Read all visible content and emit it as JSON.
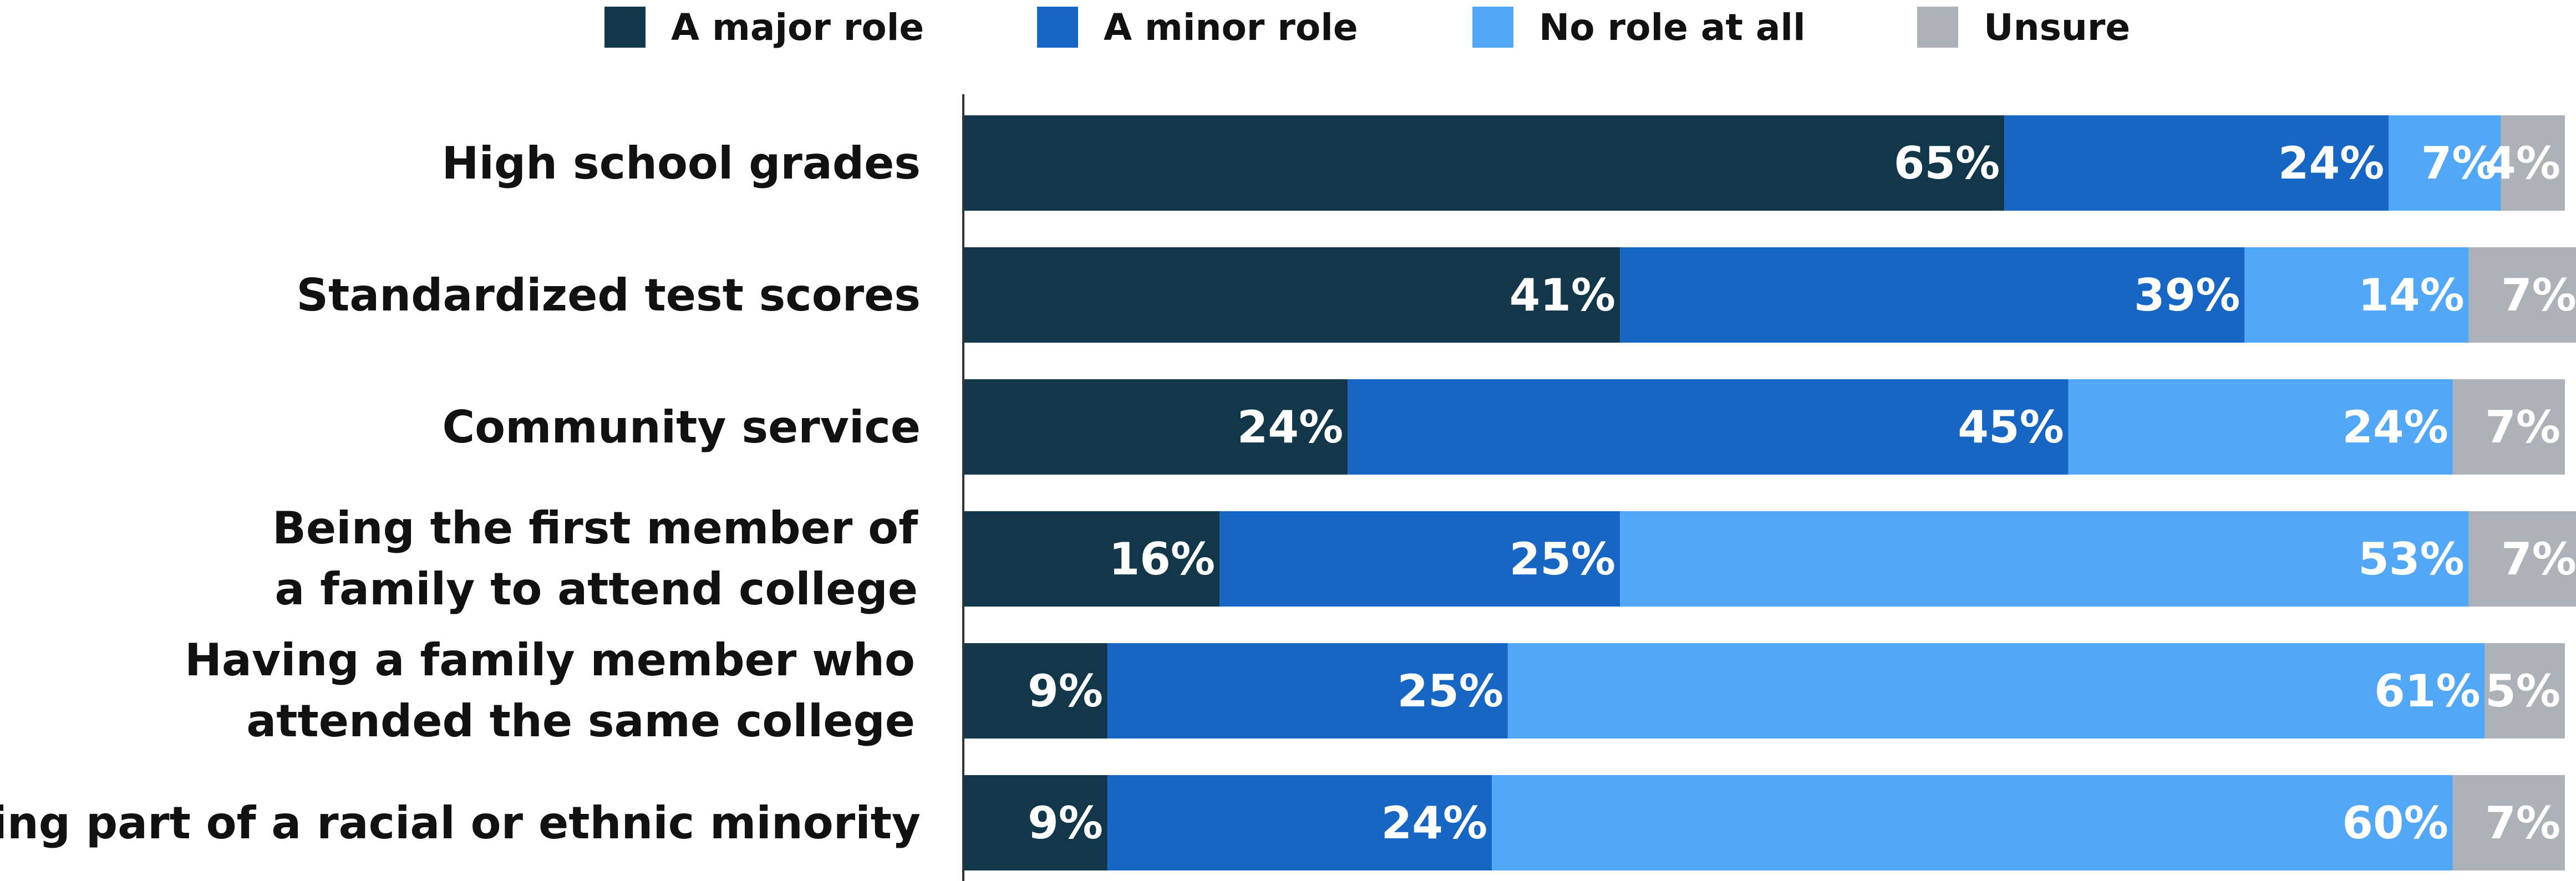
{
  "chart_data": {
    "type": "bar",
    "orientation": "horizontal",
    "stacked": true,
    "categories": [
      "High school grades",
      "Standardized test scores",
      "Community service",
      "Being the first member of a family to attend college",
      "Having a family member who attended the same college",
      "Being part of a racial or ethnic minority"
    ],
    "series": [
      {
        "name": "A major role",
        "color": "#12374b",
        "values": [
          65,
          41,
          24,
          16,
          9,
          9
        ]
      },
      {
        "name": "A minor role",
        "color": "#1866c4",
        "values": [
          24,
          39,
          45,
          25,
          25,
          24
        ]
      },
      {
        "name": "No role at all",
        "color": "#52a8f7",
        "values": [
          7,
          14,
          24,
          53,
          61,
          60
        ]
      },
      {
        "name": "Unsure",
        "color": "#adb2b9",
        "values": [
          4,
          7,
          7,
          7,
          5,
          7
        ]
      }
    ],
    "value_suffix": "%",
    "xlim": [
      0,
      100
    ],
    "legend_position": "top",
    "grid": false
  }
}
